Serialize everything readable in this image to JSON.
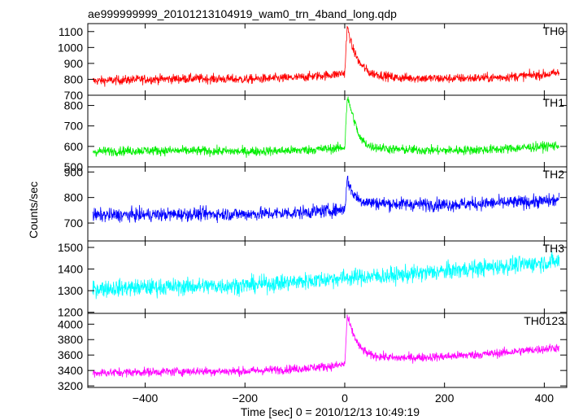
{
  "title": "ae999999999_20101213104919_wam0_trn_4band_long.qdp",
  "ylabel": "Counts/sec",
  "xlabel": "Time [sec] 0 = 2010/12/13 10:49:19",
  "chart_data": [
    {
      "type": "line",
      "panel": "TH0",
      "color": "#ff0000",
      "xlim": [
        -515,
        445
      ],
      "ylim": [
        700,
        1150
      ],
      "yticks": [
        700,
        800,
        900,
        1000,
        1100
      ],
      "x": [
        -500,
        -400,
        -300,
        -200,
        -100,
        -20,
        0,
        5,
        15,
        30,
        50,
        100,
        200,
        300,
        400,
        430
      ],
      "values": [
        790,
        800,
        805,
        800,
        810,
        830,
        840,
        1130,
        1000,
        900,
        840,
        810,
        805,
        810,
        830,
        840
      ],
      "noise": 28
    },
    {
      "type": "line",
      "panel": "TH1",
      "color": "#00ee00",
      "xlim": [
        -515,
        445
      ],
      "ylim": [
        500,
        850
      ],
      "yticks": [
        500,
        600,
        700,
        800
      ],
      "x": [
        -500,
        -400,
        -300,
        -200,
        -100,
        -20,
        0,
        5,
        15,
        30,
        50,
        100,
        200,
        300,
        400,
        430
      ],
      "values": [
        575,
        580,
        578,
        575,
        580,
        590,
        595,
        840,
        760,
        640,
        600,
        585,
        580,
        585,
        600,
        605
      ],
      "noise": 22
    },
    {
      "type": "line",
      "panel": "TH2",
      "color": "#0000ff",
      "xlim": [
        -515,
        445
      ],
      "ylim": [
        630,
        920
      ],
      "yticks": [
        700,
        800,
        900
      ],
      "x": [
        -500,
        -400,
        -300,
        -200,
        -100,
        -20,
        0,
        5,
        15,
        30,
        50,
        100,
        200,
        300,
        400,
        430
      ],
      "values": [
        730,
        732,
        735,
        735,
        740,
        750,
        755,
        870,
        820,
        790,
        780,
        775,
        772,
        778,
        785,
        790
      ],
      "noise": 25
    },
    {
      "type": "line",
      "panel": "TH3",
      "color": "#00ffff",
      "xlim": [
        -515,
        445
      ],
      "ylim": [
        1195,
        1530
      ],
      "yticks": [
        1200,
        1300,
        1400,
        1500
      ],
      "x": [
        -500,
        -400,
        -300,
        -200,
        -100,
        0,
        100,
        200,
        300,
        400,
        430
      ],
      "values": [
        1310,
        1315,
        1320,
        1325,
        1340,
        1360,
        1370,
        1390,
        1410,
        1430,
        1435
      ],
      "noise": 38
    },
    {
      "type": "line",
      "panel": "TH0123",
      "color": "#ff00ff",
      "xlim": [
        -515,
        445
      ],
      "ylim": [
        3180,
        4140
      ],
      "yticks": [
        3200,
        3400,
        3600,
        3800,
        4000
      ],
      "x": [
        -500,
        -400,
        -300,
        -200,
        -100,
        -20,
        0,
        5,
        15,
        30,
        50,
        100,
        200,
        300,
        400,
        430
      ],
      "values": [
        3370,
        3380,
        3390,
        3390,
        3420,
        3460,
        3480,
        4100,
        3900,
        3700,
        3600,
        3560,
        3580,
        3620,
        3680,
        3700
      ],
      "noise": 55
    }
  ],
  "xticks": [
    -400,
    -200,
    0,
    200,
    400
  ]
}
